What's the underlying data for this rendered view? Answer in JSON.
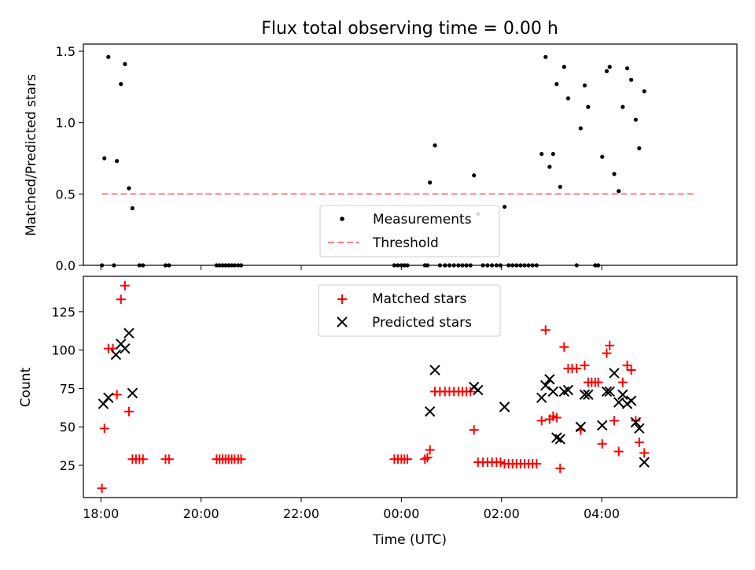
{
  "chart_data": {
    "title": "Flux total observing time = 0.00 h",
    "xlabel": "Time (UTC)",
    "x_unit": "hours since 00:00 UTC (negative = previous day)",
    "xlim": [
      -6.35,
      6.7
    ],
    "xticks": [
      {
        "value": -6,
        "label": "18:00"
      },
      {
        "value": -4,
        "label": "20:00"
      },
      {
        "value": -2,
        "label": "22:00"
      },
      {
        "value": 0,
        "label": "00:00"
      },
      {
        "value": 2,
        "label": "02:00"
      },
      {
        "value": 4,
        "label": "04:00"
      }
    ],
    "panels": [
      {
        "type": "scatter",
        "ylabel": "Matched/Predicted stars",
        "ylim": [
          0,
          1.55
        ],
        "yticks": [
          {
            "value": 0,
            "label": "0.0"
          },
          {
            "value": 0.5,
            "label": "0.5"
          },
          {
            "value": 1.0,
            "label": "1.0"
          },
          {
            "value": 1.5,
            "label": "1.5"
          }
        ],
        "legend": {
          "position": "bottom-center",
          "entries": [
            "Measurements",
            "Threshold"
          ]
        },
        "threshold": {
          "name": "Threshold",
          "value": 0.5,
          "x_range": [
            -5.98,
            5.85
          ],
          "color": "#ff7f7f"
        },
        "series": [
          {
            "name": "Measurements",
            "marker": "dot",
            "color": "#000000",
            "points": [
              [
                -5.98,
                0
              ],
              [
                -5.93,
                0.75
              ],
              [
                -5.85,
                1.46
              ],
              [
                -5.74,
                0
              ],
              [
                -5.68,
                0.73
              ],
              [
                -5.6,
                1.27
              ],
              [
                -5.52,
                1.41
              ],
              [
                -5.44,
                0.54
              ],
              [
                -5.37,
                0.4
              ],
              [
                -5.23,
                0
              ],
              [
                -5.16,
                0
              ],
              [
                -4.71,
                0
              ],
              [
                -4.64,
                0
              ],
              [
                -3.69,
                0
              ],
              [
                -3.63,
                0
              ],
              [
                -3.57,
                0
              ],
              [
                -3.51,
                0
              ],
              [
                -3.45,
                0
              ],
              [
                -3.39,
                0
              ],
              [
                -3.33,
                0
              ],
              [
                -3.26,
                0
              ],
              [
                -3.2,
                0
              ],
              [
                -0.14,
                0
              ],
              [
                -0.07,
                0
              ],
              [
                0,
                0
              ],
              [
                0.06,
                0
              ],
              [
                0.12,
                0
              ],
              [
                0.47,
                0
              ],
              [
                0.52,
                0
              ],
              [
                0.57,
                0.58
              ],
              [
                0.67,
                0.84
              ],
              [
                0.77,
                0
              ],
              [
                0.87,
                0
              ],
              [
                0.96,
                0
              ],
              [
                1.05,
                0
              ],
              [
                1.14,
                0
              ],
              [
                1.22,
                0
              ],
              [
                1.3,
                0
              ],
              [
                1.38,
                0
              ],
              [
                1.45,
                0.63
              ],
              [
                1.53,
                0.36
              ],
              [
                1.63,
                0
              ],
              [
                1.72,
                0
              ],
              [
                1.81,
                0
              ],
              [
                1.9,
                0
              ],
              [
                1.98,
                0
              ],
              [
                2.06,
                0.41
              ],
              [
                2.14,
                0
              ],
              [
                2.22,
                0
              ],
              [
                2.3,
                0
              ],
              [
                2.38,
                0
              ],
              [
                2.46,
                0
              ],
              [
                2.54,
                0
              ],
              [
                2.62,
                0
              ],
              [
                2.7,
                0
              ],
              [
                2.8,
                0.78
              ],
              [
                2.88,
                1.46
              ],
              [
                2.96,
                0.69
              ],
              [
                3.03,
                0.78
              ],
              [
                3.1,
                1.27
              ],
              [
                3.17,
                0.55
              ],
              [
                3.25,
                1.39
              ],
              [
                3.33,
                1.17
              ],
              [
                3.5,
                0
              ],
              [
                3.58,
                0.96
              ],
              [
                3.66,
                1.26
              ],
              [
                3.73,
                1.11
              ],
              [
                3.87,
                0
              ],
              [
                3.93,
                0
              ],
              [
                4.01,
                0.76
              ],
              [
                4.1,
                1.36
              ],
              [
                4.16,
                1.39
              ],
              [
                4.25,
                0.64
              ],
              [
                4.34,
                0.52
              ],
              [
                4.42,
                1.11
              ],
              [
                4.51,
                1.38
              ],
              [
                4.59,
                1.3
              ],
              [
                4.68,
                1.02
              ],
              [
                4.75,
                0.82
              ],
              [
                4.85,
                1.22
              ]
            ]
          }
        ]
      },
      {
        "type": "scatter",
        "ylabel": "Count",
        "ylim": [
          4,
          148
        ],
        "yticks": [
          {
            "value": 25,
            "label": "25"
          },
          {
            "value": 50,
            "label": "50"
          },
          {
            "value": 75,
            "label": "75"
          },
          {
            "value": 100,
            "label": "100"
          },
          {
            "value": 125,
            "label": "125"
          }
        ],
        "legend": {
          "position": "top-center",
          "entries": [
            "Matched stars",
            "Predicted stars"
          ]
        },
        "series": [
          {
            "name": "Matched stars",
            "marker": "plus",
            "color": "#ff0000",
            "points": [
              [
                -5.98,
                10
              ],
              [
                -5.93,
                49
              ],
              [
                -5.85,
                101
              ],
              [
                -5.76,
                101
              ],
              [
                -5.68,
                71
              ],
              [
                -5.6,
                133
              ],
              [
                -5.52,
                142
              ],
              [
                -5.44,
                60
              ],
              [
                -5.37,
                29
              ],
              [
                -5.3,
                29
              ],
              [
                -5.23,
                29
              ],
              [
                -5.16,
                29
              ],
              [
                -4.71,
                29
              ],
              [
                -4.64,
                29
              ],
              [
                -3.69,
                29
              ],
              [
                -3.63,
                29
              ],
              [
                -3.57,
                29
              ],
              [
                -3.51,
                29
              ],
              [
                -3.45,
                29
              ],
              [
                -3.39,
                29
              ],
              [
                -3.33,
                29
              ],
              [
                -3.26,
                29
              ],
              [
                -3.2,
                29
              ],
              [
                -0.14,
                29
              ],
              [
                -0.07,
                29
              ],
              [
                0,
                29
              ],
              [
                0.06,
                29
              ],
              [
                0.12,
                29
              ],
              [
                0.47,
                29
              ],
              [
                0.52,
                30
              ],
              [
                0.57,
                35
              ],
              [
                0.67,
                73
              ],
              [
                0.77,
                73
              ],
              [
                0.87,
                73
              ],
              [
                0.96,
                73
              ],
              [
                1.05,
                73
              ],
              [
                1.14,
                73
              ],
              [
                1.22,
                73
              ],
              [
                1.3,
                73
              ],
              [
                1.38,
                73
              ],
              [
                1.45,
                48
              ],
              [
                1.53,
                27
              ],
              [
                1.63,
                27
              ],
              [
                1.72,
                27
              ],
              [
                1.81,
                27
              ],
              [
                1.9,
                27
              ],
              [
                1.98,
                27
              ],
              [
                2.06,
                26
              ],
              [
                2.14,
                26
              ],
              [
                2.22,
                26
              ],
              [
                2.3,
                26
              ],
              [
                2.38,
                26
              ],
              [
                2.46,
                26
              ],
              [
                2.54,
                26
              ],
              [
                2.62,
                26
              ],
              [
                2.7,
                26
              ],
              [
                2.8,
                54
              ],
              [
                2.88,
                113
              ],
              [
                2.96,
                55
              ],
              [
                3.03,
                57
              ],
              [
                3.1,
                56
              ],
              [
                3.17,
                23
              ],
              [
                3.25,
                102
              ],
              [
                3.33,
                88
              ],
              [
                3.41,
                88
              ],
              [
                3.5,
                88
              ],
              [
                3.58,
                48
              ],
              [
                3.66,
                90
              ],
              [
                3.73,
                79
              ],
              [
                3.8,
                79
              ],
              [
                3.87,
                79
              ],
              [
                3.93,
                79
              ],
              [
                4.01,
                39
              ],
              [
                4.1,
                98
              ],
              [
                4.16,
                103
              ],
              [
                4.25,
                54
              ],
              [
                4.34,
                34
              ],
              [
                4.42,
                79
              ],
              [
                4.51,
                90
              ],
              [
                4.59,
                87
              ],
              [
                4.68,
                54
              ],
              [
                4.75,
                40
              ],
              [
                4.85,
                33
              ]
            ]
          },
          {
            "name": "Predicted stars",
            "marker": "x",
            "color": "#000000",
            "points": [
              [
                -5.95,
                65
              ],
              [
                -5.85,
                69
              ],
              [
                -5.7,
                97
              ],
              [
                -5.6,
                104
              ],
              [
                -5.52,
                101
              ],
              [
                -5.44,
                111
              ],
              [
                -5.37,
                72
              ],
              [
                0.57,
                60
              ],
              [
                0.67,
                87
              ],
              [
                1.45,
                76
              ],
              [
                1.53,
                74
              ],
              [
                2.06,
                63
              ],
              [
                2.8,
                69
              ],
              [
                2.88,
                77
              ],
              [
                2.96,
                81
              ],
              [
                3.03,
                73
              ],
              [
                3.1,
                43
              ],
              [
                3.17,
                42
              ],
              [
                3.25,
                73
              ],
              [
                3.33,
                74
              ],
              [
                3.58,
                50
              ],
              [
                3.66,
                71
              ],
              [
                3.73,
                71
              ],
              [
                4.01,
                51
              ],
              [
                4.1,
                73
              ],
              [
                4.16,
                73
              ],
              [
                4.25,
                85
              ],
              [
                4.34,
                66
              ],
              [
                4.42,
                71
              ],
              [
                4.51,
                65
              ],
              [
                4.59,
                67
              ],
              [
                4.68,
                53
              ],
              [
                4.75,
                49
              ],
              [
                4.85,
                27
              ]
            ]
          }
        ]
      }
    ]
  }
}
